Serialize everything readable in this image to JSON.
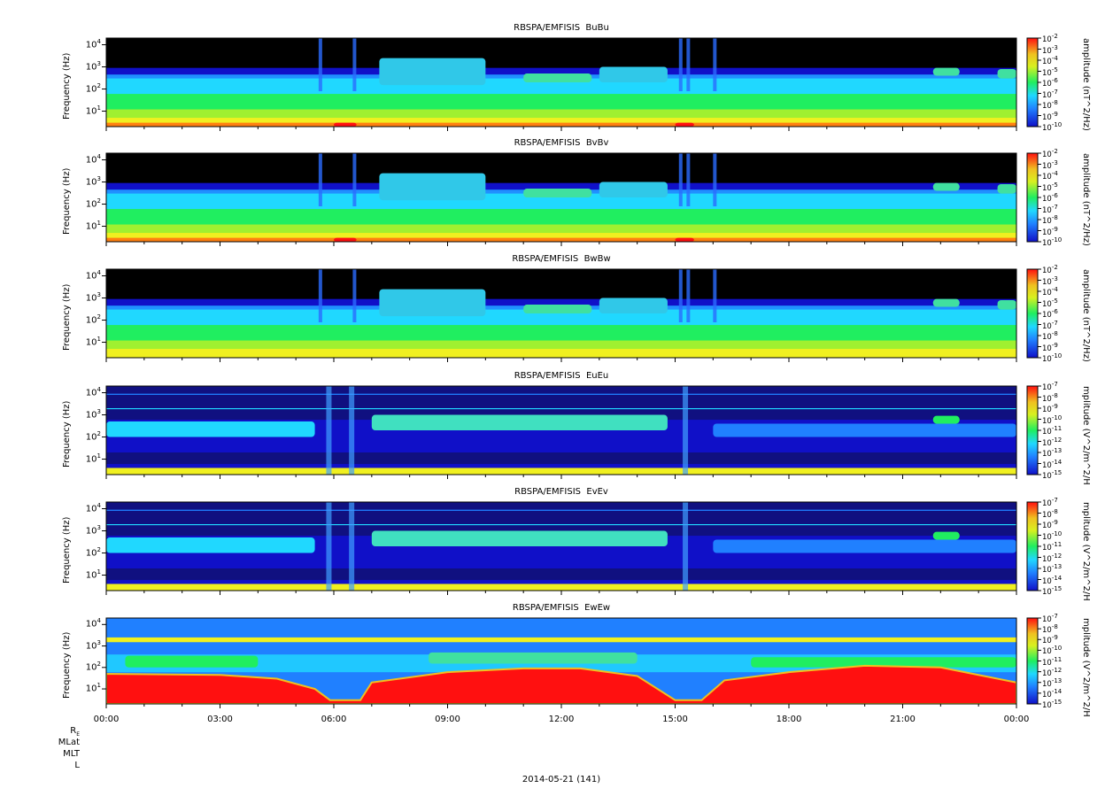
{
  "chart_data": [
    {
      "type": "heatmap",
      "title": "RBSPA/EMFISIS  BuBu",
      "ylabel": "Frequency (Hz)",
      "ylim": [
        2,
        20000
      ],
      "yscale": "log",
      "colorbar_label": "amplitude (nT^2/Hz)",
      "clim_exponents": [
        -10,
        -2
      ],
      "variant": "B"
    },
    {
      "type": "heatmap",
      "title": "RBSPA/EMFISIS  BvBv",
      "ylabel": "Frequency (Hz)",
      "ylim": [
        2,
        20000
      ],
      "yscale": "log",
      "colorbar_label": "amplitude (nT^2/Hz)",
      "clim_exponents": [
        -10,
        -2
      ],
      "variant": "B"
    },
    {
      "type": "heatmap",
      "title": "RBSPA/EMFISIS  BwBw",
      "ylabel": "Frequency (Hz)",
      "ylim": [
        2,
        20000
      ],
      "yscale": "log",
      "colorbar_label": "amplitude (nT^2/Hz)",
      "clim_exponents": [
        -10,
        -2
      ],
      "variant": "Bw"
    },
    {
      "type": "heatmap",
      "title": "RBSPA/EMFISIS  EuEu",
      "ylabel": "Frequency (Hz)",
      "ylim": [
        2,
        20000
      ],
      "yscale": "log",
      "colorbar_label": "mplitude (V^2/m^2/H",
      "clim_exponents": [
        -15,
        -7
      ],
      "variant": "E"
    },
    {
      "type": "heatmap",
      "title": "RBSPA/EMFISIS  EvEv",
      "ylabel": "Frequency (Hz)",
      "ylim": [
        2,
        20000
      ],
      "yscale": "log",
      "colorbar_label": "mplitude (V^2/m^2/H",
      "clim_exponents": [
        -15,
        -7
      ],
      "variant": "E"
    },
    {
      "type": "heatmap",
      "title": "RBSPA/EMFISIS  EwEw",
      "ylabel": "Frequency (Hz)",
      "ylim": [
        2,
        20000
      ],
      "yscale": "log",
      "colorbar_label": "mplitude (V^2/m^2/H",
      "clim_exponents": [
        -15,
        -7
      ],
      "variant": "Ew"
    }
  ],
  "ytick_exponents": [
    1,
    2,
    3,
    4
  ],
  "xticks": [
    "00:00",
    "03:00",
    "06:00",
    "09:00",
    "12:00",
    "15:00",
    "18:00",
    "21:00",
    "00:00"
  ],
  "ephemeris_labels": [
    "R",
    "MLat",
    "MLT",
    "L"
  ],
  "ephemeris_sub": "E",
  "date_label": "2014-05-21 (141)",
  "colors": {
    "black": "#000000",
    "blue": "#1010c8",
    "cyan": "#20d8ff",
    "green": "#20ee60",
    "yellow": "#f0f020",
    "red": "#ff1010"
  }
}
